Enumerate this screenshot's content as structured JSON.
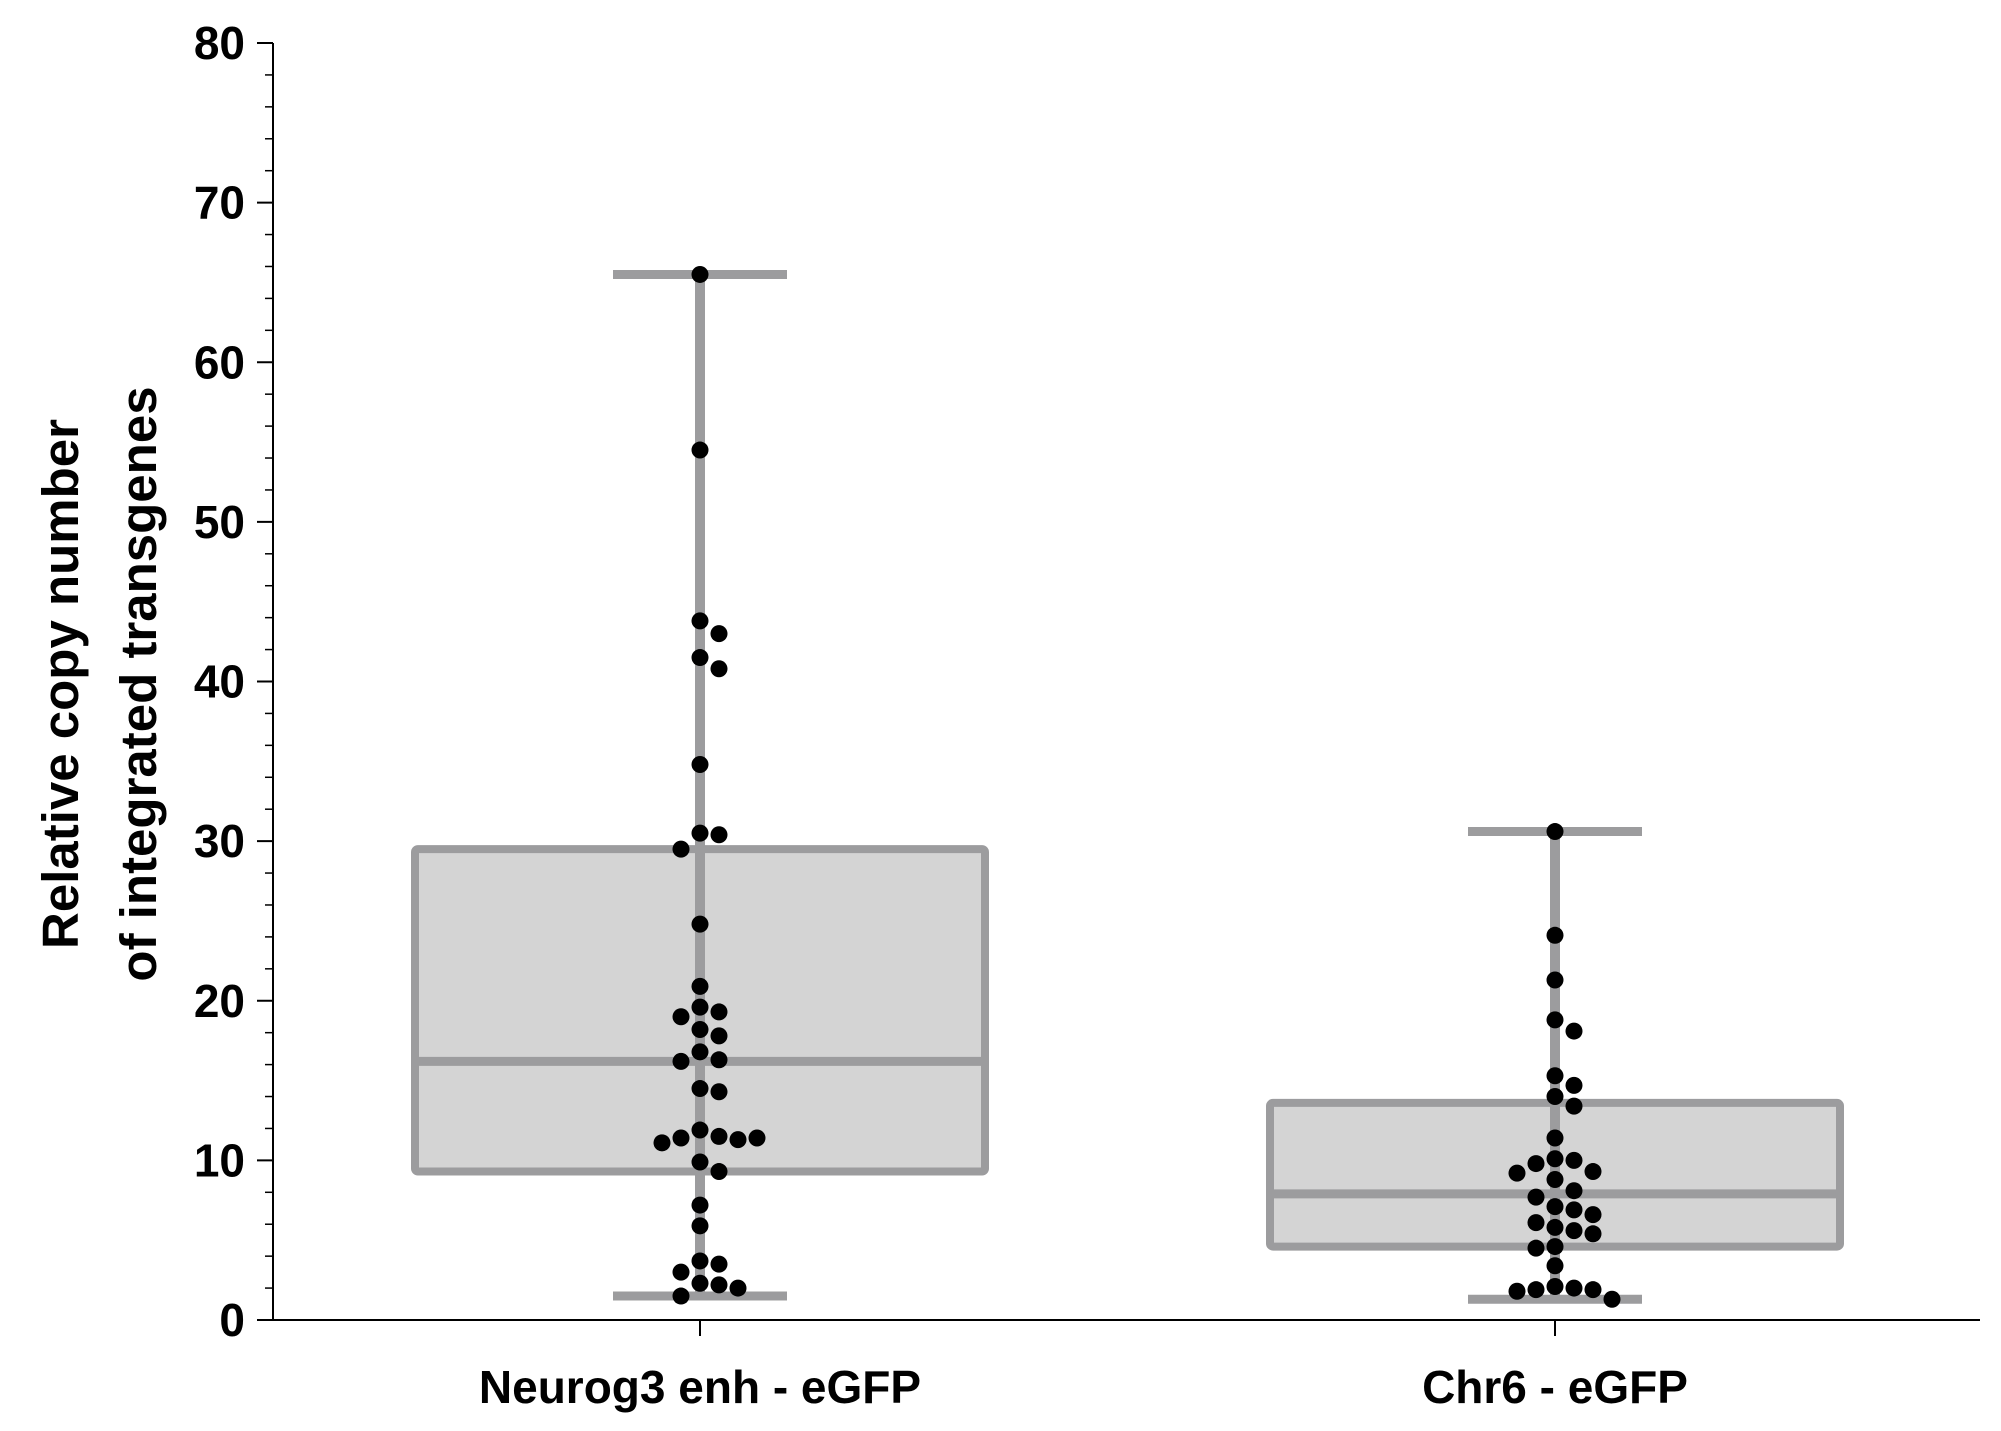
{
  "chart_data": {
    "type": "box",
    "title": "",
    "xlabel": "",
    "ylabel_lines": [
      "Relative copy number",
      "of integrated transgenes"
    ],
    "ylim": [
      0,
      80
    ],
    "yticks": [
      0,
      10,
      20,
      30,
      40,
      50,
      60,
      70,
      80
    ],
    "categories": [
      "Neurog3 enh - eGFP",
      "Chr6 - eGFP"
    ],
    "colors": {
      "box_fill": "#d4d4d4",
      "box_stroke": "#9c9c9e",
      "point": "#000000",
      "axis": "#000000"
    },
    "series": [
      {
        "category": "Neurog3 enh - eGFP",
        "whisker_low": 1.5,
        "q1": 9.3,
        "median": 16.2,
        "q3": 29.5,
        "whisker_high": 65.5,
        "points": [
          65.5,
          54.5,
          43.8,
          43.0,
          41.5,
          40.8,
          34.8,
          30.5,
          30.4,
          29.5,
          24.8,
          20.9,
          19.6,
          19.3,
          19.0,
          18.2,
          17.8,
          16.8,
          16.3,
          16.2,
          14.5,
          14.3,
          11.9,
          11.5,
          11.4,
          11.3,
          11.1,
          11.4,
          9.9,
          9.3,
          7.2,
          5.9,
          3.7,
          3.5,
          3.0,
          2.3,
          2.2,
          2.0,
          1.5
        ]
      },
      {
        "category": "Chr6 - eGFP",
        "whisker_low": 1.3,
        "q1": 4.6,
        "median": 7.9,
        "q3": 13.6,
        "whisker_high": 30.6,
        "points": [
          30.6,
          24.1,
          21.3,
          18.8,
          18.1,
          15.3,
          14.7,
          14.0,
          13.4,
          11.4,
          10.1,
          10.0,
          9.8,
          9.3,
          9.2,
          8.8,
          8.1,
          7.7,
          7.1,
          6.9,
          6.6,
          6.1,
          5.8,
          5.6,
          5.4,
          4.6,
          4.5,
          3.4,
          2.1,
          2.0,
          1.9,
          1.9,
          1.8,
          1.3
        ]
      }
    ]
  }
}
